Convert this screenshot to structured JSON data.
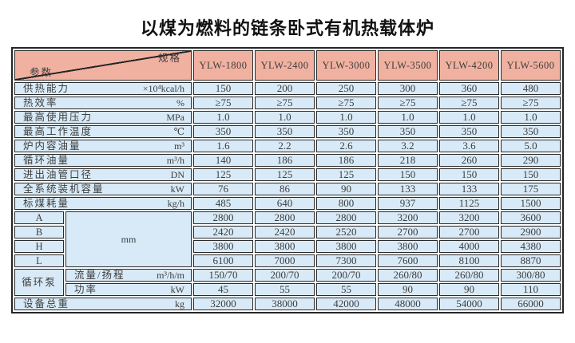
{
  "page": {
    "title": "以煤为燃料的链条卧式有机热载体炉"
  },
  "colors": {
    "header_bg": "#f1b1a1",
    "body_bg": "#d8eaf7",
    "border": "#262626",
    "text": "#3d3d3d"
  },
  "table": {
    "corner": {
      "top_right": "规格",
      "bottom_left": "参数"
    },
    "columns": [
      "YLW-1800",
      "YLW-2400",
      "YLW-3000",
      "YLW-3500",
      "YLW-4200",
      "YLW-5600"
    ],
    "rows": [
      {
        "label": "供热能力",
        "unit": "×10⁴kcal/h",
        "values": [
          "150",
          "200",
          "250",
          "300",
          "360",
          "480"
        ]
      },
      {
        "label": "热效率",
        "unit": "%",
        "values": [
          "≥75",
          "≥75",
          "≥75",
          "≥75",
          "≥75",
          "≥75"
        ]
      },
      {
        "label": "最高使用压力",
        "unit": "MPa",
        "values": [
          "1.0",
          "1.0",
          "1.0",
          "1.0",
          "1.0",
          "1.0"
        ]
      },
      {
        "label": "最高工作温度",
        "unit": "℃",
        "values": [
          "350",
          "350",
          "350",
          "350",
          "350",
          "350"
        ]
      },
      {
        "label": "炉内容油量",
        "unit": "m³",
        "values": [
          "1.6",
          "2.2",
          "2.6",
          "3.2",
          "3.6",
          "5.0"
        ]
      },
      {
        "label": "循环油量",
        "unit": "m³/h",
        "values": [
          "140",
          "186",
          "186",
          "218",
          "260",
          "290"
        ]
      },
      {
        "label": "进出油管口径",
        "unit": "DN",
        "values": [
          "125",
          "125",
          "125",
          "150",
          "150",
          "150"
        ]
      },
      {
        "label": "全系统装机容量",
        "unit": "kW",
        "values": [
          "76",
          "86",
          "90",
          "133",
          "133",
          "175"
        ]
      },
      {
        "label": "标煤耗量",
        "unit": "kg/h",
        "values": [
          "485",
          "640",
          "800",
          "937",
          "1125",
          "1500"
        ]
      }
    ],
    "dimension_rows": {
      "unit": "mm",
      "rows": [
        {
          "label": "A",
          "values": [
            "2800",
            "2800",
            "2800",
            "3200",
            "3200",
            "3600"
          ]
        },
        {
          "label": "B",
          "values": [
            "2420",
            "2420",
            "2520",
            "2700",
            "2700",
            "2900"
          ]
        },
        {
          "label": "H",
          "values": [
            "3800",
            "3800",
            "3800",
            "3800",
            "4000",
            "4380"
          ]
        },
        {
          "label": "L",
          "values": [
            "6100",
            "7000",
            "7300",
            "7600",
            "8100",
            "8870"
          ]
        }
      ]
    },
    "pump_rows": {
      "group_label": "循环泵",
      "rows": [
        {
          "label": "流量/扬程",
          "unit": "m³/h/m",
          "values": [
            "150/70",
            "200/70",
            "200/70",
            "260/80",
            "260/80",
            "300/80"
          ]
        },
        {
          "label": "功率",
          "unit": "kW",
          "values": [
            "45",
            "55",
            "55",
            "90",
            "90",
            "110"
          ]
        }
      ]
    },
    "footer_row": {
      "label": "设备总重",
      "unit": "kg",
      "values": [
        "32000",
        "38000",
        "42000",
        "48000",
        "54000",
        "66000"
      ]
    }
  }
}
